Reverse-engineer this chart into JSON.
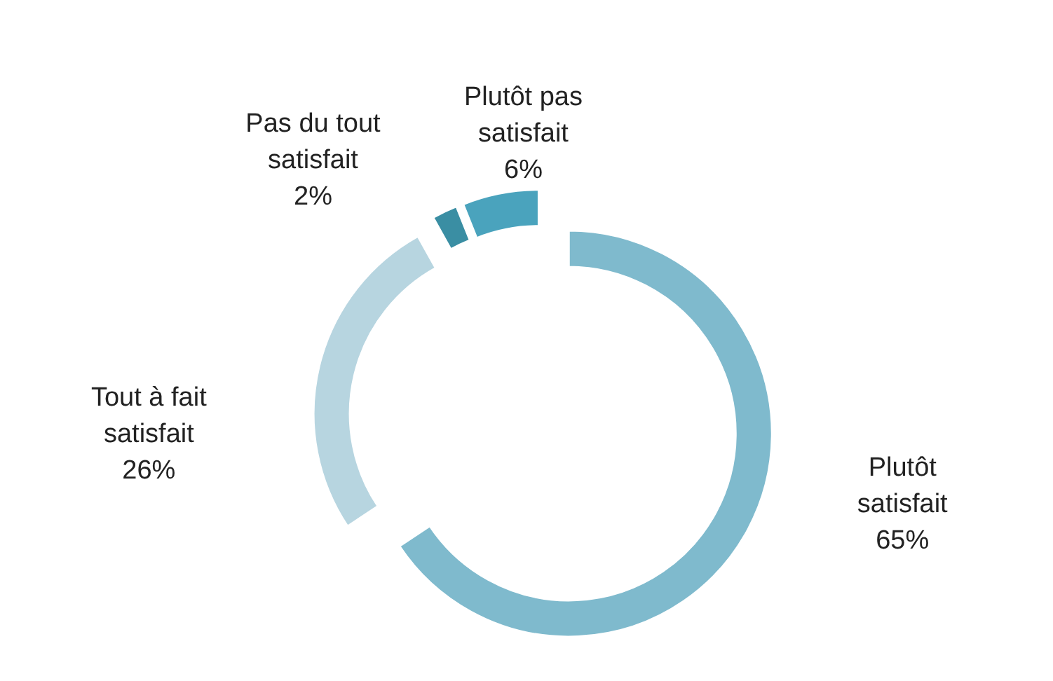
{
  "chart_data": {
    "type": "donut",
    "categories": [
      "Plutôt satisfait",
      "Tout à fait satisfait",
      "Pas du tout satisfait",
      "Plutôt pas satisfait"
    ],
    "values": [
      65,
      26,
      2,
      6
    ],
    "value_labels": [
      "65%",
      "26%",
      "2%",
      "6%"
    ],
    "colors": [
      "#7fbacd",
      "#b7d5e0",
      "#3a8ea3",
      "#4aa3bd"
    ]
  }
}
